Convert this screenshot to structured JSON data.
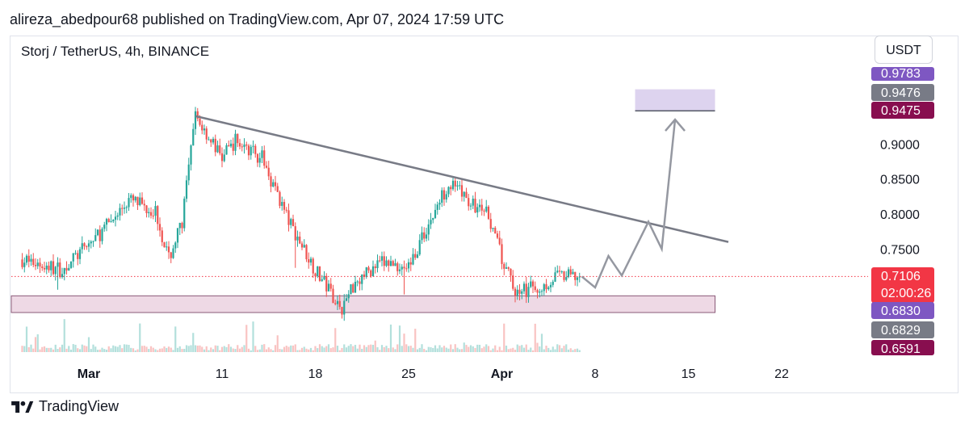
{
  "header": {
    "published": "alireza_abedpour68 published on TradingView.com, Apr 07, 2024 17:59 UTC",
    "symbol": "Storj / TetherUS, 4h, BINANCE",
    "currency": "USDT"
  },
  "footer": {
    "brand": "TradingView",
    "logo_icon": "tradingview-logo-icon"
  },
  "colors": {
    "up": "#26a69a",
    "down": "#ef5350",
    "trendline": "#787b86",
    "support_zone": "rgba(186,104,150,0.25)",
    "target_zone": "rgba(179,157,219,0.45)",
    "price_line": "#f23645"
  },
  "chart_data": {
    "type": "candlestick",
    "interval": "4h",
    "x_ticks": [
      {
        "label": "Mar",
        "date": "2024-03-01"
      },
      {
        "label": "11",
        "date": "2024-03-11"
      },
      {
        "label": "18",
        "date": "2024-03-18"
      },
      {
        "label": "25",
        "date": "2024-03-25"
      },
      {
        "label": "Apr",
        "date": "2024-04-01"
      },
      {
        "label": "8",
        "date": "2024-04-08"
      },
      {
        "label": "15",
        "date": "2024-04-15"
      },
      {
        "label": "22",
        "date": "2024-04-22"
      }
    ],
    "y_ticks": [
      "0.9000",
      "0.8500",
      "0.8000",
      "0.7500"
    ],
    "ylim": [
      0.64,
      1.0
    ],
    "price_path": [
      {
        "date": "2024-02-25",
        "price": 0.735
      },
      {
        "date": "2024-02-28",
        "price": 0.72
      },
      {
        "date": "2024-03-02",
        "price": 0.775
      },
      {
        "date": "2024-03-04",
        "price": 0.82
      },
      {
        "date": "2024-03-06",
        "price": 0.805
      },
      {
        "date": "2024-03-07",
        "price": 0.735
      },
      {
        "date": "2024-03-08",
        "price": 0.79
      },
      {
        "date": "2024-03-09",
        "price": 0.94
      },
      {
        "date": "2024-03-11",
        "price": 0.88
      },
      {
        "date": "2024-03-12",
        "price": 0.905
      },
      {
        "date": "2024-03-14",
        "price": 0.88
      },
      {
        "date": "2024-03-16",
        "price": 0.79
      },
      {
        "date": "2024-03-18",
        "price": 0.72
      },
      {
        "date": "2024-03-20",
        "price": 0.665
      },
      {
        "date": "2024-03-21",
        "price": 0.705
      },
      {
        "date": "2024-03-23",
        "price": 0.73
      },
      {
        "date": "2024-03-25",
        "price": 0.725
      },
      {
        "date": "2024-03-27",
        "price": 0.805
      },
      {
        "date": "2024-03-28",
        "price": 0.845
      },
      {
        "date": "2024-03-30",
        "price": 0.81
      },
      {
        "date": "2024-03-31",
        "price": 0.8
      },
      {
        "date": "2024-04-01",
        "price": 0.735
      },
      {
        "date": "2024-04-02",
        "price": 0.69
      },
      {
        "date": "2024-04-04",
        "price": 0.695
      },
      {
        "date": "2024-04-05",
        "price": 0.71
      },
      {
        "date": "2024-04-07",
        "price": 0.7106
      }
    ],
    "projection": [
      {
        "date": "2024-04-07",
        "price": 0.7106
      },
      {
        "date": "2024-04-08",
        "price": 0.695
      },
      {
        "date": "2024-04-09",
        "price": 0.74
      },
      {
        "date": "2024-04-10",
        "price": 0.712
      },
      {
        "date": "2024-04-12",
        "price": 0.789
      },
      {
        "date": "2024-04-13",
        "price": 0.75
      },
      {
        "date": "2024-04-14",
        "price": 0.935
      }
    ],
    "trendline": [
      {
        "date": "2024-03-09",
        "price": 0.94
      },
      {
        "date": "2024-04-18",
        "price": 0.76
      }
    ],
    "support_zone": {
      "from": "2024-02-25",
      "to": "2024-04-17",
      "low": 0.6591,
      "high": 0.683
    },
    "target_zone": {
      "from": "2024-04-11",
      "to": "2024-04-17",
      "low": 0.9475,
      "high": 0.9783
    },
    "current_price": 0.7106,
    "price_labels": [
      {
        "price": 0.9783,
        "text": "0.9783",
        "color": "#7e57c2",
        "clip": "top"
      },
      {
        "price": 0.9476,
        "text": "0.9476",
        "color": "#787b86"
      },
      {
        "price": 0.9475,
        "text": "0.9475",
        "color": "#880e4f"
      },
      {
        "price": 0.7106,
        "text": "0.7106",
        "sub": "02:00:26",
        "color": "#f23645"
      },
      {
        "price": 0.683,
        "text": "0.6830",
        "color": "#7e57c2"
      },
      {
        "price": 0.6829,
        "text": "0.6829",
        "color": "#787b86"
      },
      {
        "price": 0.6591,
        "text": "0.6591",
        "color": "#880e4f",
        "clip": "bottom"
      }
    ]
  }
}
